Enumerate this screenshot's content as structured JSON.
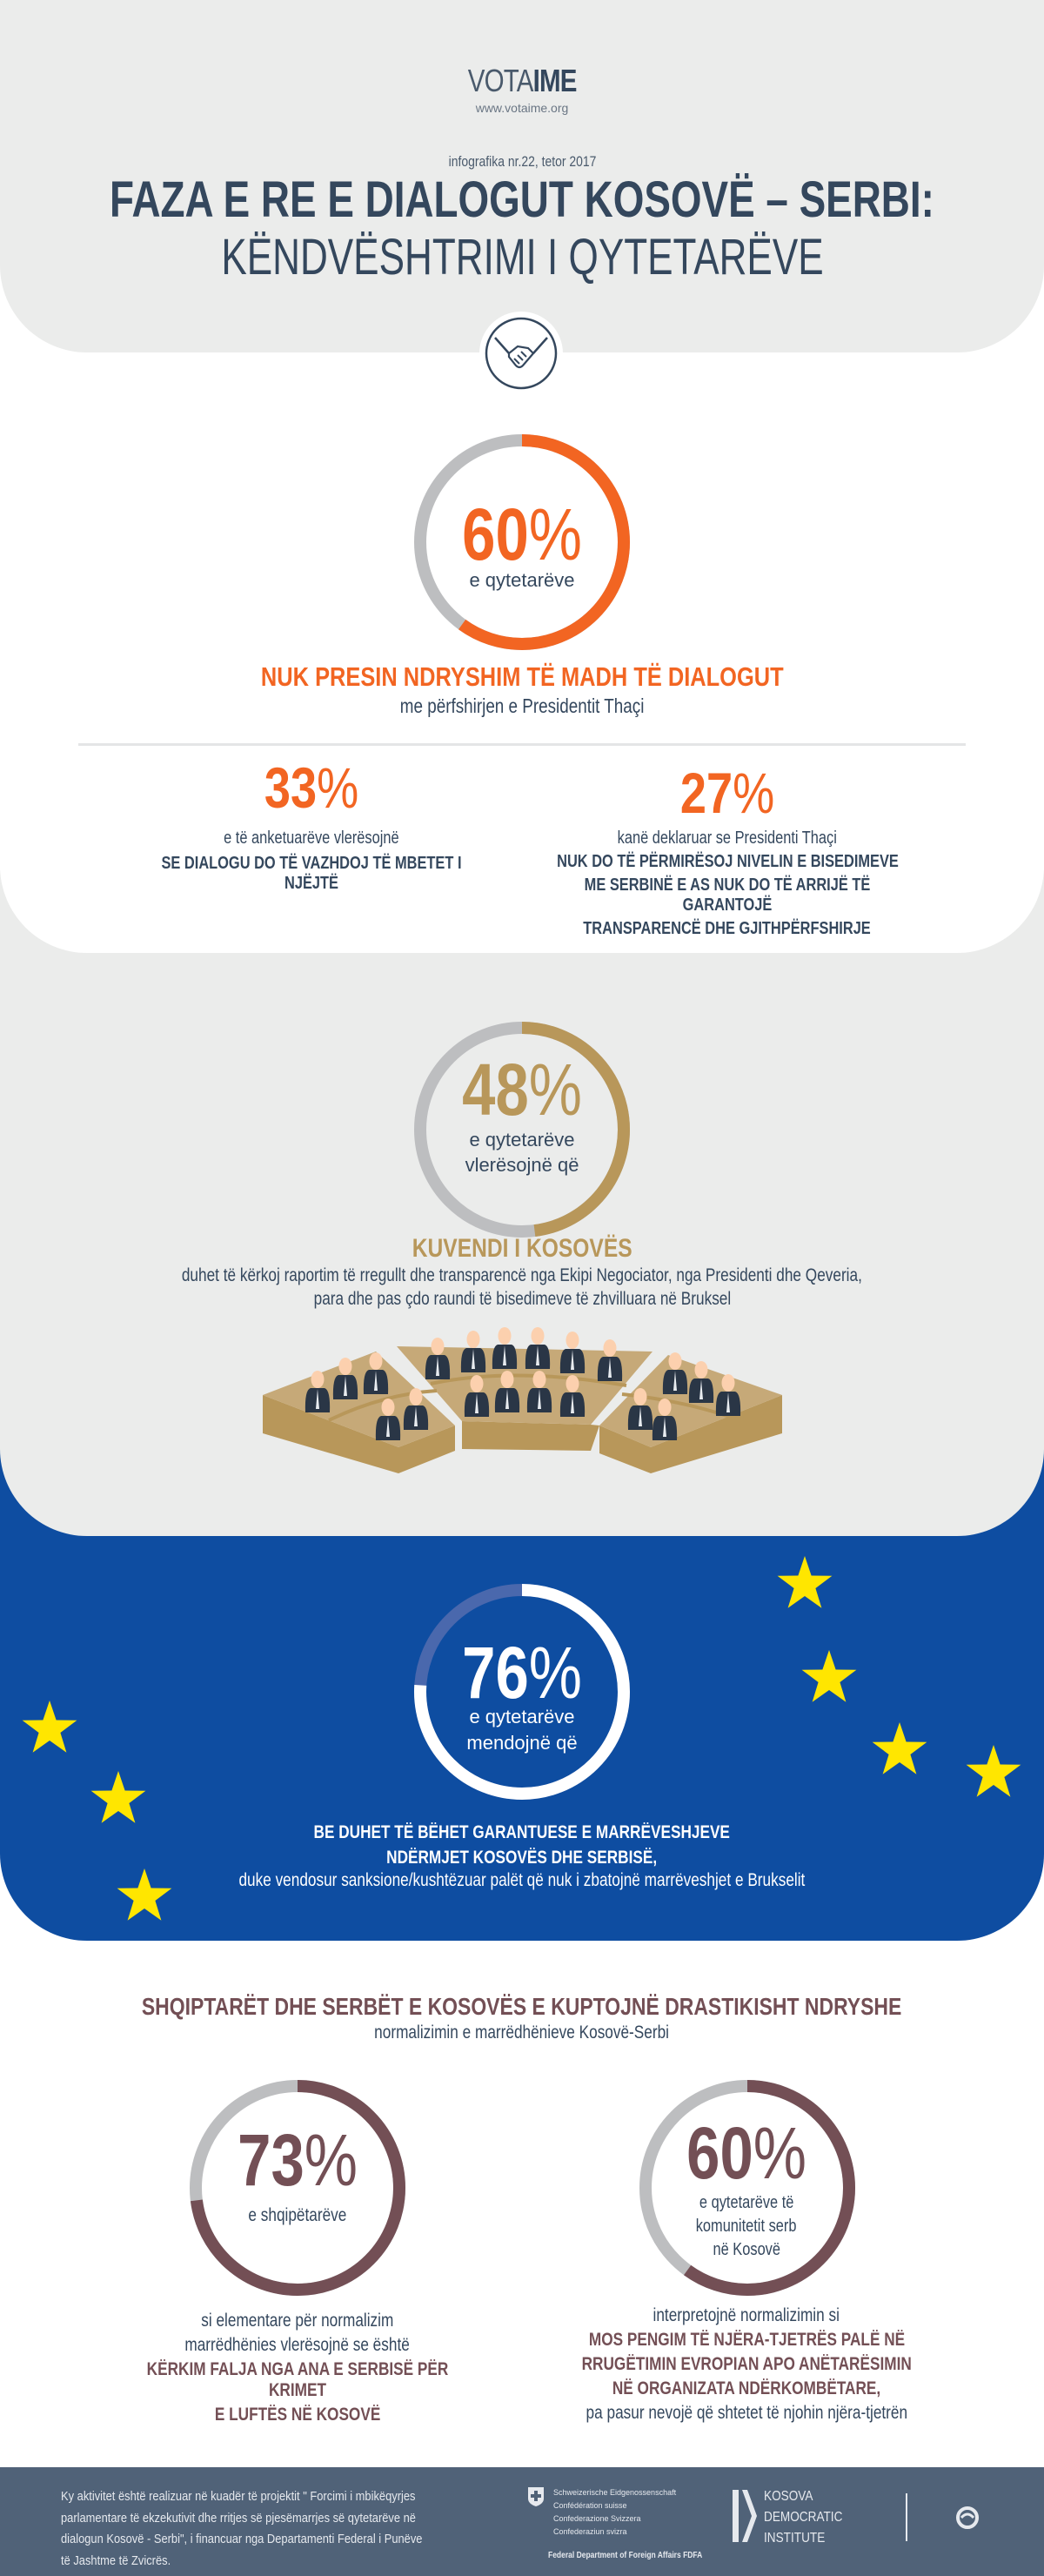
{
  "header": {
    "logo_light": "VOTA",
    "logo_bold": "IME",
    "url": "www.votaime.org",
    "issue": "infografika nr.22, tetor 2017",
    "title": "FAZA E RE E DIALOGUT KOSOVË – SERBI:",
    "subtitle": "KËNDVËSHTRIMI I QYTETARËVE",
    "icon": "handshake-icon"
  },
  "colors": {
    "orange": "#f26522",
    "gold": "#b8975a",
    "blue": "#0e4da1",
    "maroon": "#734f55",
    "navy": "#34475d",
    "ring_gray": "#bdbec0",
    "star": "#ffe600"
  },
  "s1": {
    "ring": {
      "value": 60,
      "num": "60",
      "sym": "%",
      "caption": "e qytetarëve"
    },
    "headline": "NUK PRESIN NDRYSHIM TË MADH TË DIALOGUT",
    "sub": "me përfshirjen e Presidentit Thaçi",
    "left": {
      "num": "33",
      "sym": "%",
      "line1": "e të anketuarëve vlerësojnë",
      "line2": "SE DIALOGU DO TË VAZHDOJ TË MBETET I NJËJTË"
    },
    "right": {
      "num": "27",
      "sym": "%",
      "line1": "kanë deklaruar se Presidenti Thaçi",
      "line2": "NUK DO TË PËRMIRËSOJ NIVELIN E BISEDIMEVE",
      "line3": "ME SERBINË E AS NUK DO TË ARRIJË TË GARANTOJË",
      "line4": "TRANSPARENCË DHE GJITHPËRFSHIRJE"
    }
  },
  "s2": {
    "ring": {
      "value": 48,
      "num": "48",
      "sym": "%",
      "caption1": "e qytetarëve",
      "caption2": "vlerësojnë që"
    },
    "headline": "KUVENDI I KOSOVËS",
    "line1": "duhet të kërkoj raportim të rregullt dhe transparencë nga Ekipi Negociator, nga Presidenti dhe Qeveria,",
    "line2": "para dhe pas çdo raundi të bisedimeve të zhvilluara në Bruksel"
  },
  "s3": {
    "ring": {
      "value": 76,
      "num": "76",
      "sym": "%",
      "caption1": "e qytetarëve",
      "caption2": "mendojnë që"
    },
    "line1": "BE DUHET TË BËHET GARANTUESE E MARRËVESHJEVE",
    "line2": "NDËRMJET KOSOVËS DHE SERBISË,",
    "line3": "duke vendosur sanksione/kushtëzuar palët që nuk i zbatojnë marrëveshjet e Brukselit"
  },
  "s4": {
    "headline": "SHQIPTARËT DHE SERBËT E KOSOVËS E KUPTOJNË DRASTIKISHT NDRYSHE",
    "sub": "normalizimin e marrëdhënieve Kosovë-Serbi",
    "left": {
      "ring": {
        "value": 73,
        "num": "73",
        "sym": "%",
        "caption1": "e shqipëtarëve"
      },
      "line1": "si elementare për normalizim",
      "line2": "marrëdhënies vlerësojnë se është",
      "line3": "KËRKIM FALJA NGA ANA E SERBISË PËR KRIMET",
      "line4": "E LUFTËS NË KOSOVË"
    },
    "right": {
      "ring": {
        "value": 60,
        "num": "60",
        "sym": "%",
        "caption1": "e qytetarëve të",
        "caption2": "komunitetit serb",
        "caption3": "në Kosovë"
      },
      "line1": "interpretojnë normalizimin si",
      "line2": "MOS PENGIM TË NJËRA-TJETRËS PALË NË",
      "line3": "RRUGËTIMIN EVROPIAN APO ANËTARËSIMIN",
      "line4": "NË ORGANIZATA NDËRKOMBËTARE,",
      "line5": "pa pasur nevojë që shtetet të njohin njëra-tjetrën"
    }
  },
  "footer": {
    "text1": "Ky aktivitet është realizuar në kuadër të projektit \" Forcimi i mbikëqyrjes",
    "text2": "parlamentare të ekzekutivit dhe rritjes së pjesëmarrjes së qytetarëve në",
    "text3": "dialogun Kosovë - Serbi\", i financuar nga Departamenti Federal i Punëve",
    "text4": "të Jashtme të Zvicrës.",
    "swiss1": "Schweizerische Eidgenossenschaft",
    "swiss2": "Confédération suisse",
    "swiss3": "Confederazione Svizzera",
    "swiss4": "Confederaziun svizra",
    "swiss5": "Federal Department of Foreign Affairs FDFA",
    "kdi1": "KOSOVA",
    "kdi2": "DEMOCRATIC",
    "kdi3": "INSTITUTE"
  }
}
